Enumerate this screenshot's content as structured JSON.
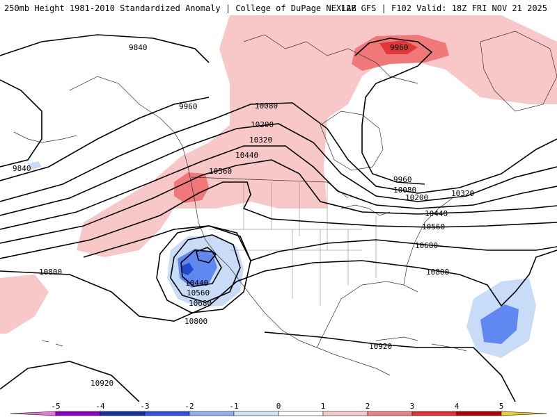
{
  "header": {
    "title_left": "250mb Height 1981-2010 Standardized Anomaly | College of DuPage NEXLAB",
    "title_right": "12Z GFS | F102 Valid: 18Z FRI NOV 21 2025"
  },
  "contour_labels": [
    "9840",
    "9960",
    "10080",
    "10200",
    "10320",
    "10440",
    "10560",
    "10680",
    "10800",
    "10920"
  ],
  "map_labels": {
    "l_9840_a": "9840",
    "l_9840_b": "9840",
    "l_9960_a": "9960",
    "l_9960_low": "9960",
    "l_9960_c": "9960",
    "l_10080_a": "10080",
    "l_10080_b": "10080",
    "l_10200_a": "10200",
    "l_10200_b": "10200",
    "l_10320_a": "10320",
    "l_10320_b": "10320",
    "l_10440_a": "10440",
    "l_10440_b": "10440",
    "l_10440_low": "10440",
    "l_10560_a": "10560",
    "l_10560_b": "10560",
    "l_10560_low": "10560",
    "l_10680_a": "10680",
    "l_10680_low": "10680",
    "l_10800_a": "10800",
    "l_10800_b": "10800",
    "l_10800_c": "10800",
    "l_10920_a": "10920",
    "l_10920_b": "10920"
  },
  "colorbar": {
    "ticks": [
      "-5",
      "-4",
      "-3",
      "-2",
      "-1",
      "0",
      "1",
      "2",
      "3",
      "4",
      "5"
    ],
    "colors": [
      "#f070e0",
      "#9000c0",
      "#1030a0",
      "#3050e0",
      "#90b0f0",
      "#d0e4f8",
      "#ffffff",
      "#f8c8c8",
      "#f08080",
      "#e03030",
      "#b00000",
      "#f0a000",
      "#f0c830"
    ]
  },
  "anomaly_colors": {
    "pos_weak": "#f8c8c8",
    "pos_mod": "#f07878",
    "pos_strong": "#e03838",
    "neg_weak": "#c8dcf8",
    "neg_mod": "#6088f0",
    "neg_strong": "#2048c8"
  }
}
